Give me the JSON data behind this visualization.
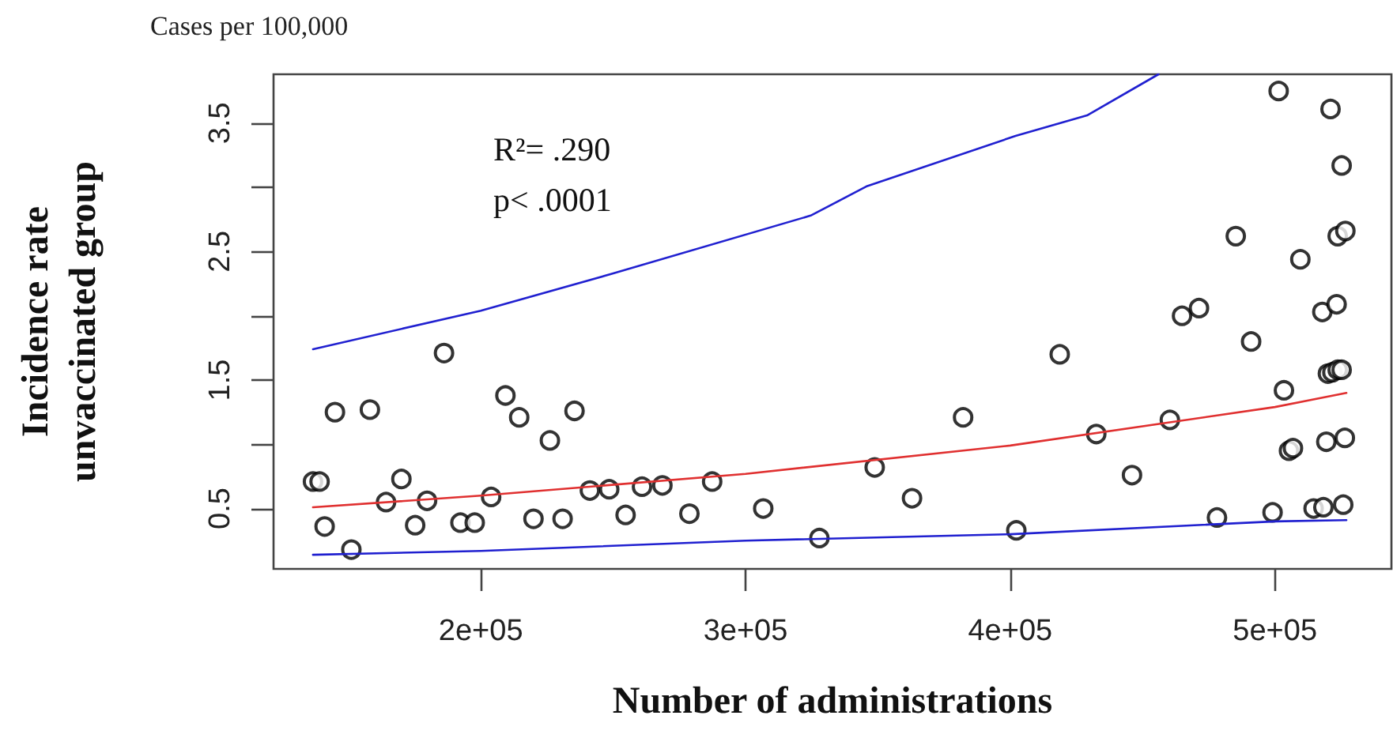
{
  "chart_data": {
    "type": "scatter",
    "title": "Cases per 100,000",
    "xlabel": "Number of administrations",
    "ylabel": "Incidence rate\nunvaccinated group",
    "annotations": [
      "R²= .290",
      "p< .0001"
    ],
    "grid": false,
    "xlim": [
      121700,
      544000
    ],
    "xticks": [
      {
        "value": 200000,
        "label": "2e+05"
      },
      {
        "value": 300000,
        "label": "3e+05"
      },
      {
        "value": 400000,
        "label": "4e+05"
      },
      {
        "value": 500000,
        "label": "5e+05"
      }
    ],
    "ylim": [
      0.03,
      3.88
    ],
    "yticks": [
      0.5,
      {
        "value": 1.0,
        "label": null
      },
      1.5,
      {
        "value": 2.0,
        "label": null
      },
      2.5,
      {
        "value": 3.0,
        "label": null
      },
      3.5
    ],
    "series": [
      {
        "marker": "circle",
        "color": "#000000",
        "x": [
          136600,
          139100,
          141000,
          144900,
          151100,
          158100,
          164200,
          170000,
          175200,
          179700,
          186100,
          192300,
          197700,
          203900,
          209300,
          214500,
          219900,
          226100,
          230900,
          235400,
          241200,
          248500,
          254700,
          260900,
          268600,
          278800,
          287400,
          306700,
          327900,
          348800,
          362900,
          382200,
          402300,
          418700,
          432500,
          446000,
          460300,
          464900,
          471300,
          478100,
          485200,
          491000,
          499100,
          501400,
          503400,
          505300,
          506800,
          509600,
          514600,
          518300,
          517900,
          519400,
          521000,
          520000,
          521700,
          523700,
          525200,
          523700,
          526600,
          523300,
          525200,
          525800,
          526400
        ],
        "values": [
          0.71,
          0.71,
          0.36,
          1.25,
          0.18,
          1.27,
          0.55,
          0.73,
          0.37,
          0.56,
          1.71,
          0.39,
          0.39,
          0.59,
          1.38,
          1.21,
          0.42,
          1.03,
          0.42,
          1.26,
          0.64,
          0.65,
          0.45,
          0.67,
          0.68,
          0.46,
          0.71,
          0.5,
          0.27,
          0.82,
          0.58,
          1.21,
          0.33,
          1.7,
          1.08,
          0.76,
          1.19,
          2.0,
          2.06,
          0.43,
          2.62,
          1.8,
          0.47,
          3.75,
          1.42,
          0.95,
          0.97,
          2.44,
          0.5,
          0.51,
          2.03,
          1.02,
          3.61,
          1.55,
          1.56,
          1.58,
          1.58,
          2.62,
          2.66,
          2.09,
          3.17,
          0.53,
          1.05
        ]
      },
      {
        "type": "line",
        "marker": "none",
        "line_style": "solid",
        "color": "#e03030",
        "x": [
          136600,
          200000,
          300000,
          400000,
          500000,
          527000
        ],
        "values": [
          0.51,
          0.6,
          0.77,
          0.99,
          1.29,
          1.4
        ]
      },
      {
        "type": "line",
        "marker": "none",
        "line_style": "solid",
        "color": "#2020d0",
        "x": [
          136600,
          200000,
          300000,
          400000,
          500000,
          527000
        ],
        "values": [
          0.14,
          0.17,
          0.25,
          0.3,
          0.4,
          0.41
        ]
      },
      {
        "type": "line",
        "marker": "none",
        "line_style": "solid",
        "color": "#2020d0",
        "x": [
          136600,
          200000,
          250000,
          324600,
          346000,
          402000,
          429000,
          456000
        ],
        "values": [
          1.74,
          2.04,
          2.33,
          2.78,
          3.01,
          3.4,
          3.56,
          3.88
        ]
      }
    ]
  }
}
